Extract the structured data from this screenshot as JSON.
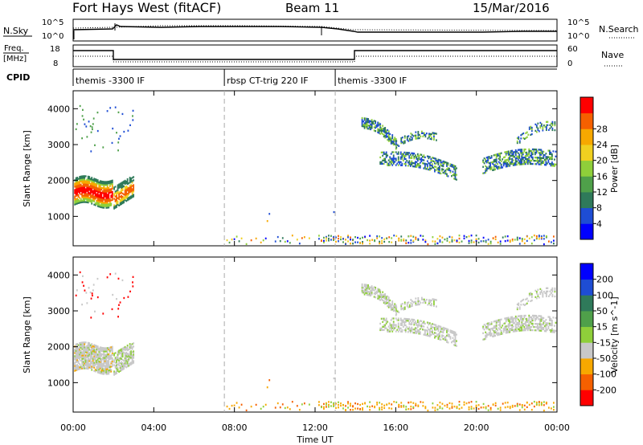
{
  "header": {
    "station": "Fort Hays West (fitACF)",
    "beam": "Beam 11",
    "date": "15/Mar/2016"
  },
  "noise_panel": {
    "left_label": "N.Sky",
    "right_label": "N.Search",
    "left_ticks": [
      "10^5",
      "10^0"
    ],
    "right_ticks": [
      "10^5",
      "10^0"
    ]
  },
  "freq_panel": {
    "left_label_line1": "Freq.",
    "left_label_line2": "[MHz]",
    "right_label": "Nave",
    "left_ticks": [
      "18",
      "8"
    ],
    "right_ticks": [
      "60",
      "0"
    ]
  },
  "cpid": {
    "label": "CPID",
    "segments": [
      {
        "name": "themis -3300 IF",
        "start_hour": 0.0
      },
      {
        "name": "rbsp CT-trig 220 IF",
        "start_hour": 7.5
      },
      {
        "name": "themis -3300 IF",
        "start_hour": 13.0
      }
    ]
  },
  "colors": {
    "power": [
      "#0000ff",
      "#1e4dd4",
      "#2f7a5a",
      "#4fa04a",
      "#8fcf3a",
      "#f0d020",
      "#f7a800",
      "#f56000",
      "#ff0000"
    ],
    "velocity": [
      "#0000ff",
      "#1e4dd4",
      "#2f7a5a",
      "#4fa04a",
      "#8fcf3a",
      "#c8c8c8",
      "#f7a800",
      "#f56000",
      "#ff0000"
    ],
    "marker": "#aaaaaa"
  },
  "chart_data": [
    {
      "type": "heatmap",
      "name": "power",
      "ylabel": "Slant Range [km]",
      "xlabel": "Time UT",
      "xlim": [
        0,
        24
      ],
      "ylim": [
        180,
        4500
      ],
      "x_ticks": [
        "00:00",
        "04:00",
        "08:00",
        "12:00",
        "16:00",
        "20:00",
        "00:00"
      ],
      "y_ticks": [
        1000,
        2000,
        3000,
        4000
      ],
      "colorbar": {
        "label": "Power [dB]",
        "ticks": [
          4,
          8,
          12,
          16,
          20,
          24,
          28
        ],
        "range": [
          0,
          30
        ]
      },
      "vertical_markers_hours": [
        7.5,
        13.0
      ],
      "regions": [
        {
          "t": [
            0.0,
            1.9
          ],
          "r": [
            1300,
            2100
          ],
          "level": "high"
        },
        {
          "t": [
            2.0,
            3.0
          ],
          "r": [
            1200,
            2000
          ],
          "level": "mid"
        },
        {
          "t": [
            14.3,
            16.0
          ],
          "r": [
            2900,
            3700
          ],
          "level": "mid"
        },
        {
          "t": [
            15.0,
            19.0
          ],
          "r": [
            1900,
            2700
          ],
          "level": "low"
        },
        {
          "t": [
            20.0,
            24.0
          ],
          "r": [
            2100,
            2800
          ],
          "level": "mid"
        },
        {
          "t": [
            7.5,
            24.0
          ],
          "r": [
            200,
            450
          ],
          "level": "mixed"
        }
      ]
    },
    {
      "type": "heatmap",
      "name": "velocity",
      "ylabel": "Slant Range [km]",
      "xlabel": "Time UT",
      "xlim": [
        0,
        24
      ],
      "ylim": [
        180,
        4500
      ],
      "x_ticks": [
        "00:00",
        "04:00",
        "08:00",
        "12:00",
        "16:00",
        "20:00",
        "00:00"
      ],
      "y_ticks": [
        1000,
        2000,
        3000,
        4000
      ],
      "colorbar": {
        "label": "Velocity [m s^-1]",
        "ticks": [
          200,
          100,
          50,
          15,
          -15,
          -50,
          -100,
          -200
        ]
      },
      "vertical_markers_hours": [
        7.5,
        13.0
      ]
    }
  ]
}
